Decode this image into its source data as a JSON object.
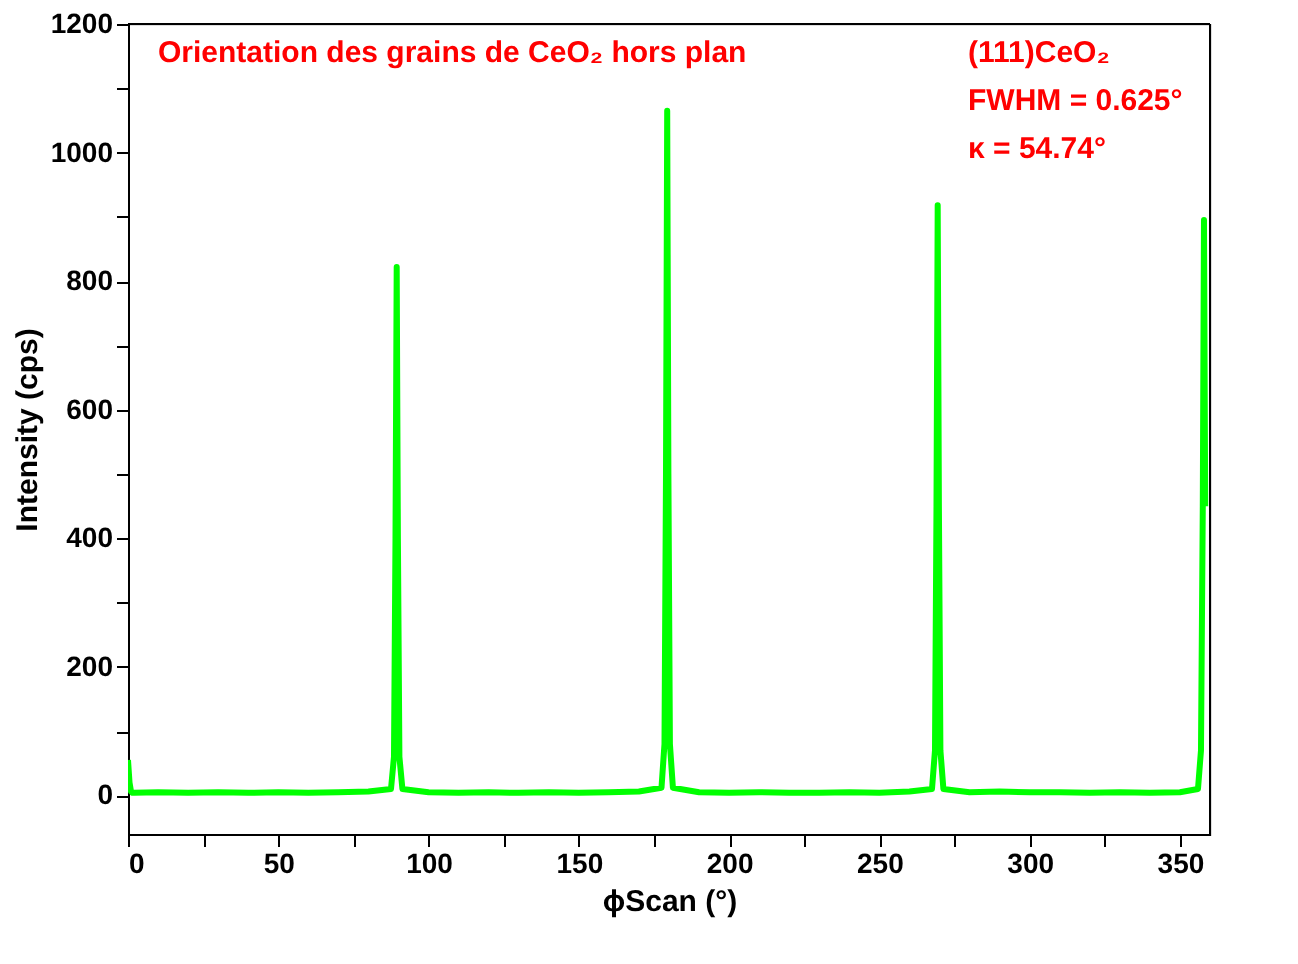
{
  "chart_data": {
    "type": "line",
    "xlabel": "ϕScan (°)",
    "ylabel": "Intensity (cps)",
    "annotations": [
      "Orientation des grains de CeO₂ hors plan",
      "(111)CeO₂",
      "FWHM = 0.625°",
      "κ  = 54.74°"
    ],
    "x": [
      0,
      0.5,
      1,
      1.5,
      2,
      10,
      20,
      30,
      40,
      50,
      60,
      70,
      80,
      87.5,
      88.5,
      89,
      89.4,
      89.8,
      90.3,
      91.3,
      100,
      110,
      120,
      130,
      140,
      150,
      160,
      170,
      177.5,
      178.5,
      179,
      179.4,
      179.8,
      180.3,
      181.3,
      190,
      200,
      210,
      220,
      230,
      240,
      250,
      260,
      267.5,
      268.5,
      269,
      269.4,
      269.8,
      270.3,
      271.3,
      280,
      290,
      300,
      310,
      320,
      330,
      340,
      350,
      356,
      357,
      357.6,
      358,
      358.4
    ],
    "series": [
      {
        "color": "#00ff00",
        "values": [
          55,
          20,
          6,
          4,
          4,
          5,
          4,
          5,
          4,
          5,
          4,
          5,
          6,
          10,
          60,
          400,
          822,
          400,
          60,
          10,
          5,
          4,
          5,
          4,
          5,
          4,
          5,
          6,
          12,
          80,
          500,
          1065,
          500,
          80,
          12,
          5,
          4,
          5,
          4,
          4,
          5,
          4,
          6,
          10,
          70,
          450,
          918,
          450,
          70,
          10,
          5,
          6,
          5,
          5,
          4,
          5,
          4,
          5,
          10,
          70,
          450,
          895,
          450
        ]
      }
    ],
    "xlim": [
      0,
      360
    ],
    "ylim": [
      -60,
      1200
    ],
    "xticks": [
      0,
      {
        "value": 25,
        "label": null
      },
      50,
      {
        "value": 75,
        "label": null
      },
      100,
      {
        "value": 125,
        "label": null
      },
      150,
      {
        "value": 175,
        "label": null
      },
      200,
      {
        "value": 225,
        "label": null
      },
      250,
      {
        "value": 275,
        "label": null
      },
      300,
      {
        "value": 325,
        "label": null
      },
      350
    ],
    "yticks": [
      0,
      {
        "value": 100,
        "label": null
      },
      200,
      {
        "value": 300,
        "label": null
      },
      400,
      {
        "value": 500,
        "label": null
      },
      600,
      {
        "value": 700,
        "label": null
      },
      800,
      {
        "value": 900,
        "label": null
      },
      1000,
      {
        "value": 1100,
        "label": null
      },
      1200
    ],
    "grid": false,
    "marker": "none",
    "line_style": "solid"
  }
}
